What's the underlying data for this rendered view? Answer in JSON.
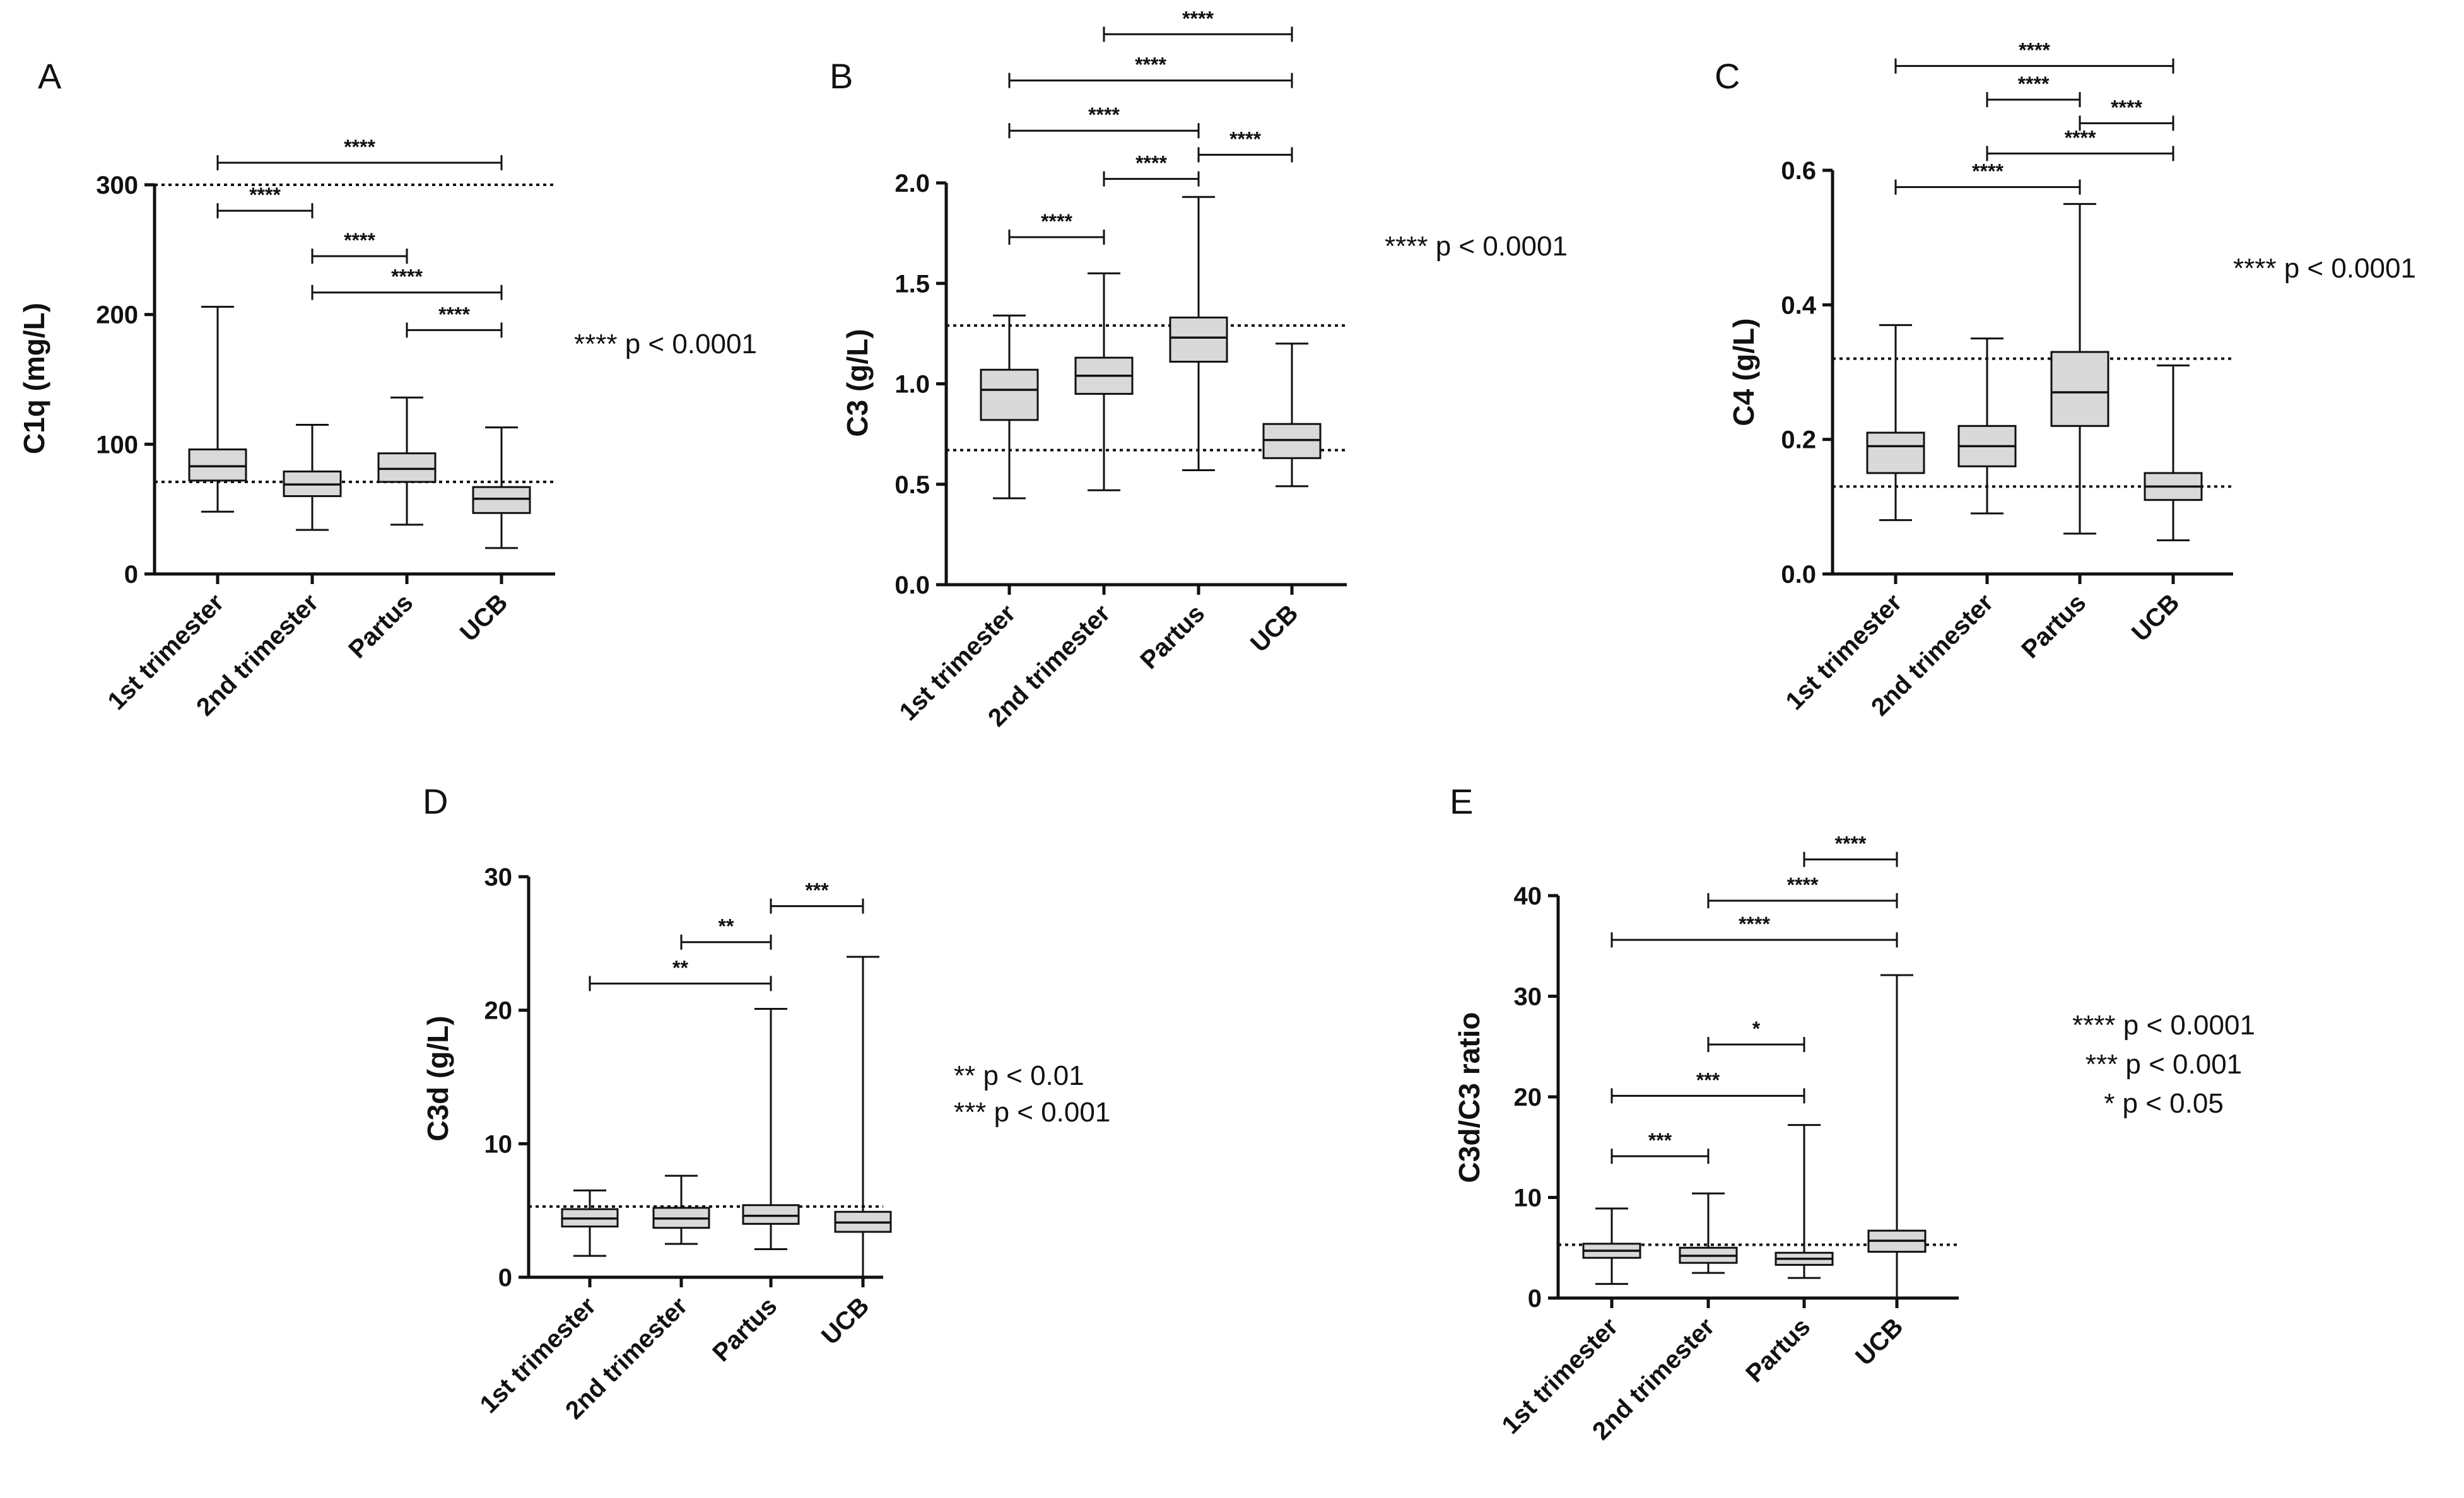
{
  "figure": {
    "colors": {
      "box_fill": "#d9d9d9",
      "stroke": "#111111",
      "background": "#ffffff"
    }
  },
  "chart_data": [
    {
      "panel": "A",
      "type": "box",
      "title": "",
      "xlabel": "",
      "ylabel": "C1q (mg/L)",
      "categories": [
        "1st trimester",
        "2nd trimester",
        "Partus",
        "UCB"
      ],
      "ylim": [
        0,
        300
      ],
      "yticks": [
        0,
        100,
        200,
        300
      ],
      "grid": false,
      "boxes": [
        {
          "min": 48,
          "q1": 72,
          "median": 83,
          "q3": 96,
          "max": 206
        },
        {
          "min": 34,
          "q1": 60,
          "median": 69,
          "q3": 79,
          "max": 115
        },
        {
          "min": 38,
          "q1": 71,
          "median": 81,
          "q3": 93,
          "max": 136
        },
        {
          "min": 20,
          "q1": 47,
          "median": 58,
          "q3": 67,
          "max": 113
        }
      ],
      "reference_lines": [
        300,
        71
      ],
      "comparisons": [
        {
          "from": 0,
          "to": 3,
          "y": 317,
          "label": "****"
        },
        {
          "from": 0,
          "to": 1,
          "y": 280,
          "label": "****"
        },
        {
          "from": 1,
          "to": 2,
          "y": 245,
          "label": "****"
        },
        {
          "from": 1,
          "to": 3,
          "y": 217,
          "label": "****"
        },
        {
          "from": 2,
          "to": 3,
          "y": 188,
          "label": "****"
        }
      ],
      "legend": [
        "**** p < 0.0001"
      ]
    },
    {
      "panel": "B",
      "type": "box",
      "title": "",
      "xlabel": "",
      "ylabel": "C3 (g/L)",
      "categories": [
        "1st trimester",
        "2nd trimester",
        "Partus",
        "UCB"
      ],
      "ylim": [
        0,
        2.0
      ],
      "yticks": [
        0.0,
        0.5,
        1.0,
        1.5,
        2.0
      ],
      "grid": false,
      "boxes": [
        {
          "min": 0.43,
          "q1": 0.82,
          "median": 0.97,
          "q3": 1.07,
          "max": 1.34
        },
        {
          "min": 0.47,
          "q1": 0.95,
          "median": 1.04,
          "q3": 1.13,
          "max": 1.55
        },
        {
          "min": 0.57,
          "q1": 1.11,
          "median": 1.23,
          "q3": 1.33,
          "max": 1.93
        },
        {
          "min": 0.49,
          "q1": 0.63,
          "median": 0.72,
          "q3": 0.8,
          "max": 1.2
        }
      ],
      "reference_lines": [
        1.29,
        0.67
      ],
      "comparisons": [
        {
          "from": 1,
          "to": 3,
          "y": 2.74,
          "label": "****"
        },
        {
          "from": 0,
          "to": 3,
          "y": 2.51,
          "label": "****"
        },
        {
          "from": 0,
          "to": 2,
          "y": 2.26,
          "label": "****"
        },
        {
          "from": 2,
          "to": 3,
          "y": 2.14,
          "label": "****"
        },
        {
          "from": 1,
          "to": 2,
          "y": 2.02,
          "label": "****"
        },
        {
          "from": 0,
          "to": 1,
          "y": 1.73,
          "label": "****"
        }
      ],
      "legend": [
        "**** p < 0.0001"
      ]
    },
    {
      "panel": "C",
      "type": "box",
      "title": "",
      "xlabel": "",
      "ylabel": "C4 (g/L)",
      "categories": [
        "1st trimester",
        "2nd trimester",
        "Partus",
        "UCB"
      ],
      "ylim": [
        0,
        0.6
      ],
      "yticks": [
        0.0,
        0.2,
        0.4,
        0.6
      ],
      "grid": false,
      "boxes": [
        {
          "min": 0.08,
          "q1": 0.15,
          "median": 0.19,
          "q3": 0.21,
          "max": 0.37
        },
        {
          "min": 0.09,
          "q1": 0.16,
          "median": 0.19,
          "q3": 0.22,
          "max": 0.35
        },
        {
          "min": 0.06,
          "q1": 0.22,
          "median": 0.27,
          "q3": 0.33,
          "max": 0.55
        },
        {
          "min": 0.05,
          "q1": 0.11,
          "median": 0.13,
          "q3": 0.15,
          "max": 0.31
        }
      ],
      "reference_lines": [
        0.32,
        0.13
      ],
      "comparisons": [
        {
          "from": 0,
          "to": 3,
          "y": 0.755,
          "label": "****"
        },
        {
          "from": 1,
          "to": 2,
          "y": 0.705,
          "label": "****"
        },
        {
          "from": 2,
          "to": 3,
          "y": 0.67,
          "label": "****"
        },
        {
          "from": 1,
          "to": 3,
          "y": 0.625,
          "label": "****"
        },
        {
          "from": 0,
          "to": 2,
          "y": 0.575,
          "label": "****"
        }
      ],
      "legend": [
        "**** p < 0.0001"
      ]
    },
    {
      "panel": "D",
      "type": "box",
      "title": "",
      "xlabel": "",
      "ylabel": "C3d (g/L)",
      "categories": [
        "1st trimester",
        "2nd trimester",
        "Partus",
        "UCB"
      ],
      "ylim": [
        0,
        30
      ],
      "yticks": [
        0,
        10,
        20,
        30
      ],
      "grid": false,
      "boxes": [
        {
          "min": 1.6,
          "q1": 3.8,
          "median": 4.4,
          "q3": 5.1,
          "max": 6.5
        },
        {
          "min": 2.5,
          "q1": 3.7,
          "median": 4.4,
          "q3": 5.2,
          "max": 7.6
        },
        {
          "min": 2.1,
          "q1": 4.0,
          "median": 4.6,
          "q3": 5.4,
          "max": 20.1
        },
        {
          "min": 0.0,
          "q1": 3.4,
          "median": 4.1,
          "q3": 4.9,
          "max": 24.0
        }
      ],
      "reference_lines": [
        5.3
      ],
      "comparisons": [
        {
          "from": 2,
          "to": 3,
          "y": 27.8,
          "label": "***"
        },
        {
          "from": 1,
          "to": 2,
          "y": 25.1,
          "label": "**"
        },
        {
          "from": 0,
          "to": 2,
          "y": 22.0,
          "label": "**"
        }
      ],
      "legend": [
        "** p < 0.01",
        "*** p < 0.001"
      ]
    },
    {
      "panel": "E",
      "type": "box",
      "title": "",
      "xlabel": "",
      "ylabel": "C3d/C3 ratio",
      "categories": [
        "1st trimester",
        "2nd trimester",
        "Partus",
        "UCB"
      ],
      "ylim": [
        0,
        40
      ],
      "yticks": [
        0,
        10,
        20,
        30,
        40
      ],
      "grid": false,
      "boxes": [
        {
          "min": 1.4,
          "q1": 4.0,
          "median": 4.7,
          "q3": 5.4,
          "max": 8.9
        },
        {
          "min": 2.5,
          "q1": 3.5,
          "median": 4.2,
          "q3": 5.0,
          "max": 10.4
        },
        {
          "min": 2.0,
          "q1": 3.3,
          "median": 3.9,
          "q3": 4.5,
          "max": 17.2
        },
        {
          "min": 0.0,
          "q1": 4.6,
          "median": 5.7,
          "q3": 6.7,
          "max": 32.1
        }
      ],
      "reference_lines": [
        5.3
      ],
      "comparisons": [
        {
          "from": 2,
          "to": 3,
          "y": 43.6,
          "label": "****"
        },
        {
          "from": 1,
          "to": 3,
          "y": 39.5,
          "label": "****"
        },
        {
          "from": 0,
          "to": 3,
          "y": 35.6,
          "label": "****"
        },
        {
          "from": 1,
          "to": 2,
          "y": 25.2,
          "label": "*"
        },
        {
          "from": 0,
          "to": 2,
          "y": 20.1,
          "label": "***"
        },
        {
          "from": 0,
          "to": 1,
          "y": 14.1,
          "label": "***"
        }
      ],
      "legend": [
        "**** p < 0.0001",
        "*** p < 0.001",
        "* p < 0.05"
      ]
    }
  ]
}
